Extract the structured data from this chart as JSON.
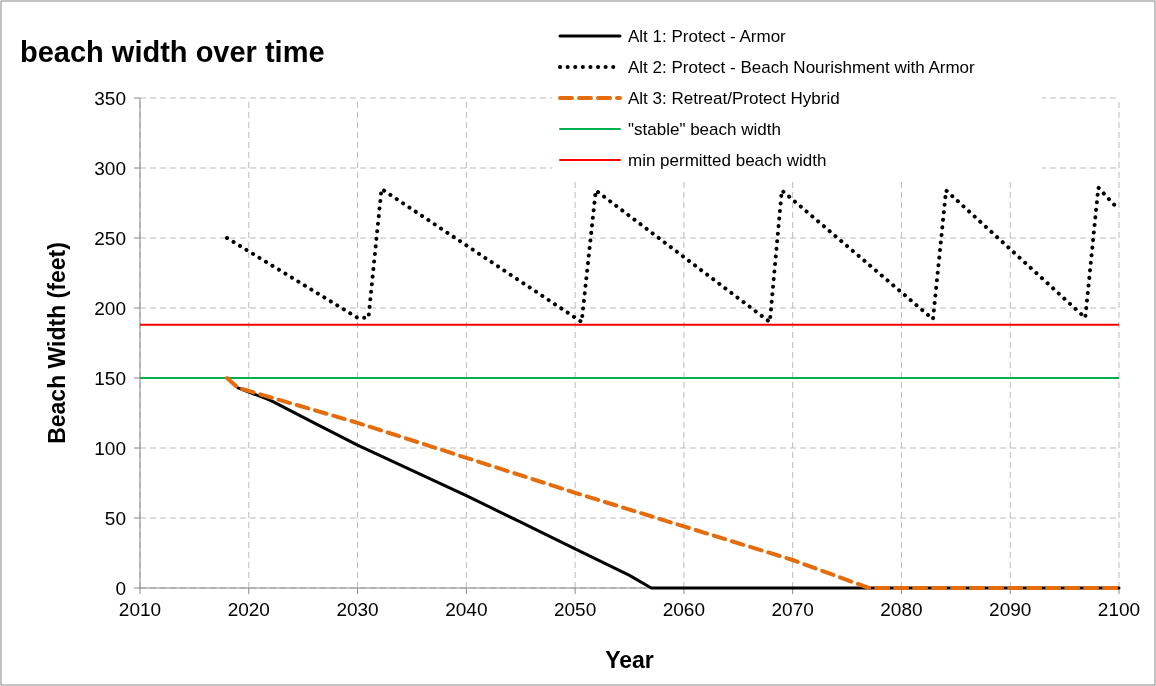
{
  "chart_data": {
    "type": "line",
    "title": "beach width over time",
    "xlabel": "Year",
    "ylabel": "Beach Width (feet)",
    "xlim": [
      2010,
      2100
    ],
    "xticks": [
      2010,
      2020,
      2030,
      2040,
      2050,
      2060,
      2070,
      2080,
      2090,
      2100
    ],
    "ylim": [
      0,
      350
    ],
    "yticks": [
      0,
      50,
      100,
      150,
      200,
      250,
      300,
      350
    ],
    "grid": true,
    "legend": "top right",
    "series": [
      {
        "name": "Alt 1: Protect - Armor",
        "color": "#000000",
        "line_style": "solid",
        "x": [
          2019,
          2022,
          2026,
          2030,
          2035,
          2040,
          2045,
          2050,
          2055,
          2057,
          2070,
          2085,
          2100
        ],
        "values": [
          143,
          134,
          118,
          102,
          84,
          66,
          47,
          28,
          9,
          0,
          0,
          0,
          0
        ]
      },
      {
        "name": "Alt 2: Protect - Beach Nourishment with Armor",
        "color": "#000000",
        "line_style": "dotted",
        "x": [
          2018,
          2030,
          2031,
          2032.2,
          2050.6,
          2051.9,
          2067.9,
          2069,
          2082.9,
          2084.1,
          2096.9,
          2098.1,
          2100
        ],
        "values": [
          250,
          193,
          193,
          285,
          190,
          284,
          190,
          284,
          192,
          284,
          193,
          286,
          270
        ]
      },
      {
        "name": "Alt 3: Retreat/Protect Hybrid",
        "color": "#e46c0a",
        "line_style": "dashed",
        "x": [
          2018,
          2019,
          2030,
          2040,
          2050,
          2060,
          2070,
          2077,
          2100
        ],
        "values": [
          150,
          143,
          118,
          93,
          68,
          44,
          20,
          0,
          0
        ]
      }
    ],
    "ref_lines": [
      {
        "axis": "y",
        "value": 150,
        "label": "\"stable\" beach width",
        "color": "#00b050"
      },
      {
        "axis": "y",
        "value": 188,
        "label": "min permitted beach width",
        "color": "#ff0000"
      }
    ]
  }
}
